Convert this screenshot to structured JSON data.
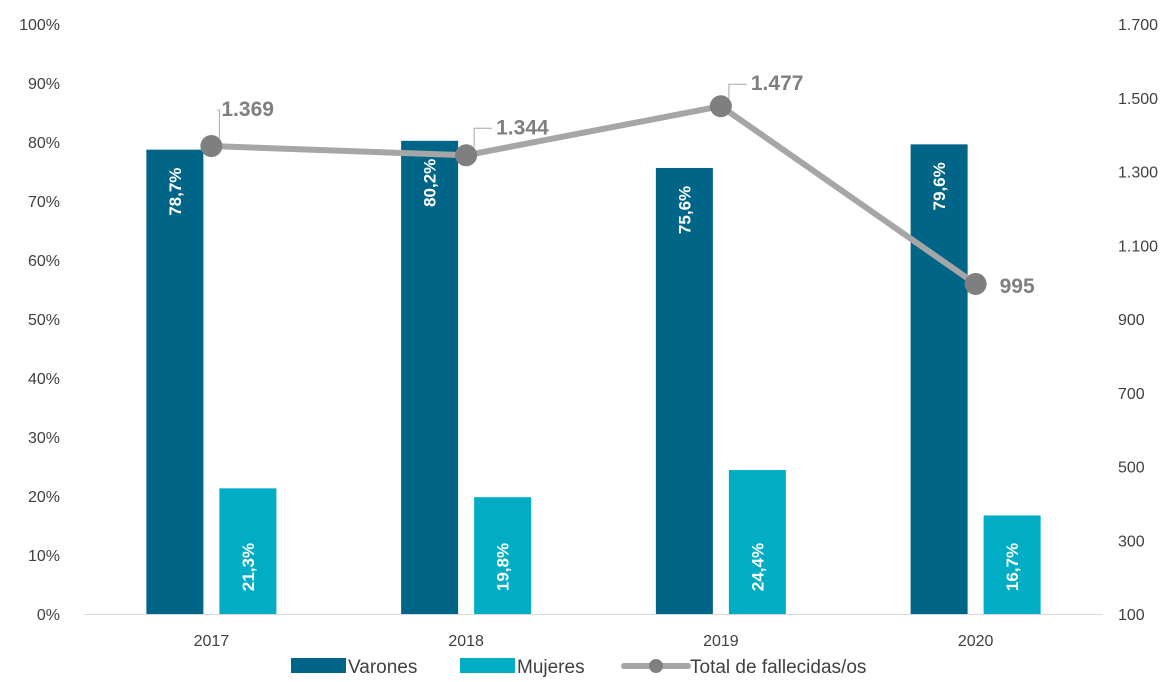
{
  "chart_data": {
    "type": "bar",
    "categories": [
      "2017",
      "2018",
      "2019",
      "2020"
    ],
    "series": [
      {
        "name": "Varones",
        "type": "bar",
        "axis": "left",
        "color": "#006586",
        "values": [
          78.7,
          80.2,
          75.6,
          79.6
        ],
        "labels": [
          "78,7%",
          "80,2%",
          "75,6%",
          "79,6%"
        ]
      },
      {
        "name": "Mujeres",
        "type": "bar",
        "axis": "left",
        "color": "#00adc4",
        "values": [
          21.3,
          19.8,
          24.4,
          16.7
        ],
        "labels": [
          "21,3%",
          "19,8%",
          "24,4%",
          "16,7%"
        ]
      },
      {
        "name": "Total de fallecidas/os",
        "type": "line",
        "axis": "right",
        "color": "#a6a6a6",
        "marker_color": "#7f7f7f",
        "values": [
          1369,
          1344,
          1477,
          995
        ],
        "labels": [
          "1.369",
          "1.344",
          "1.477",
          "995"
        ]
      }
    ],
    "y_left": {
      "ylim": [
        0,
        100
      ],
      "ticks": [
        "0%",
        "10%",
        "20%",
        "30%",
        "40%",
        "50%",
        "60%",
        "70%",
        "80%",
        "90%",
        "100%"
      ]
    },
    "y_right": {
      "ylim": [
        100,
        1700
      ],
      "ticks": [
        "100",
        "300",
        "500",
        "700",
        "900",
        "1.100",
        "1.300",
        "1.500",
        "1.700"
      ]
    },
    "grid": false,
    "legend": "bottom"
  }
}
